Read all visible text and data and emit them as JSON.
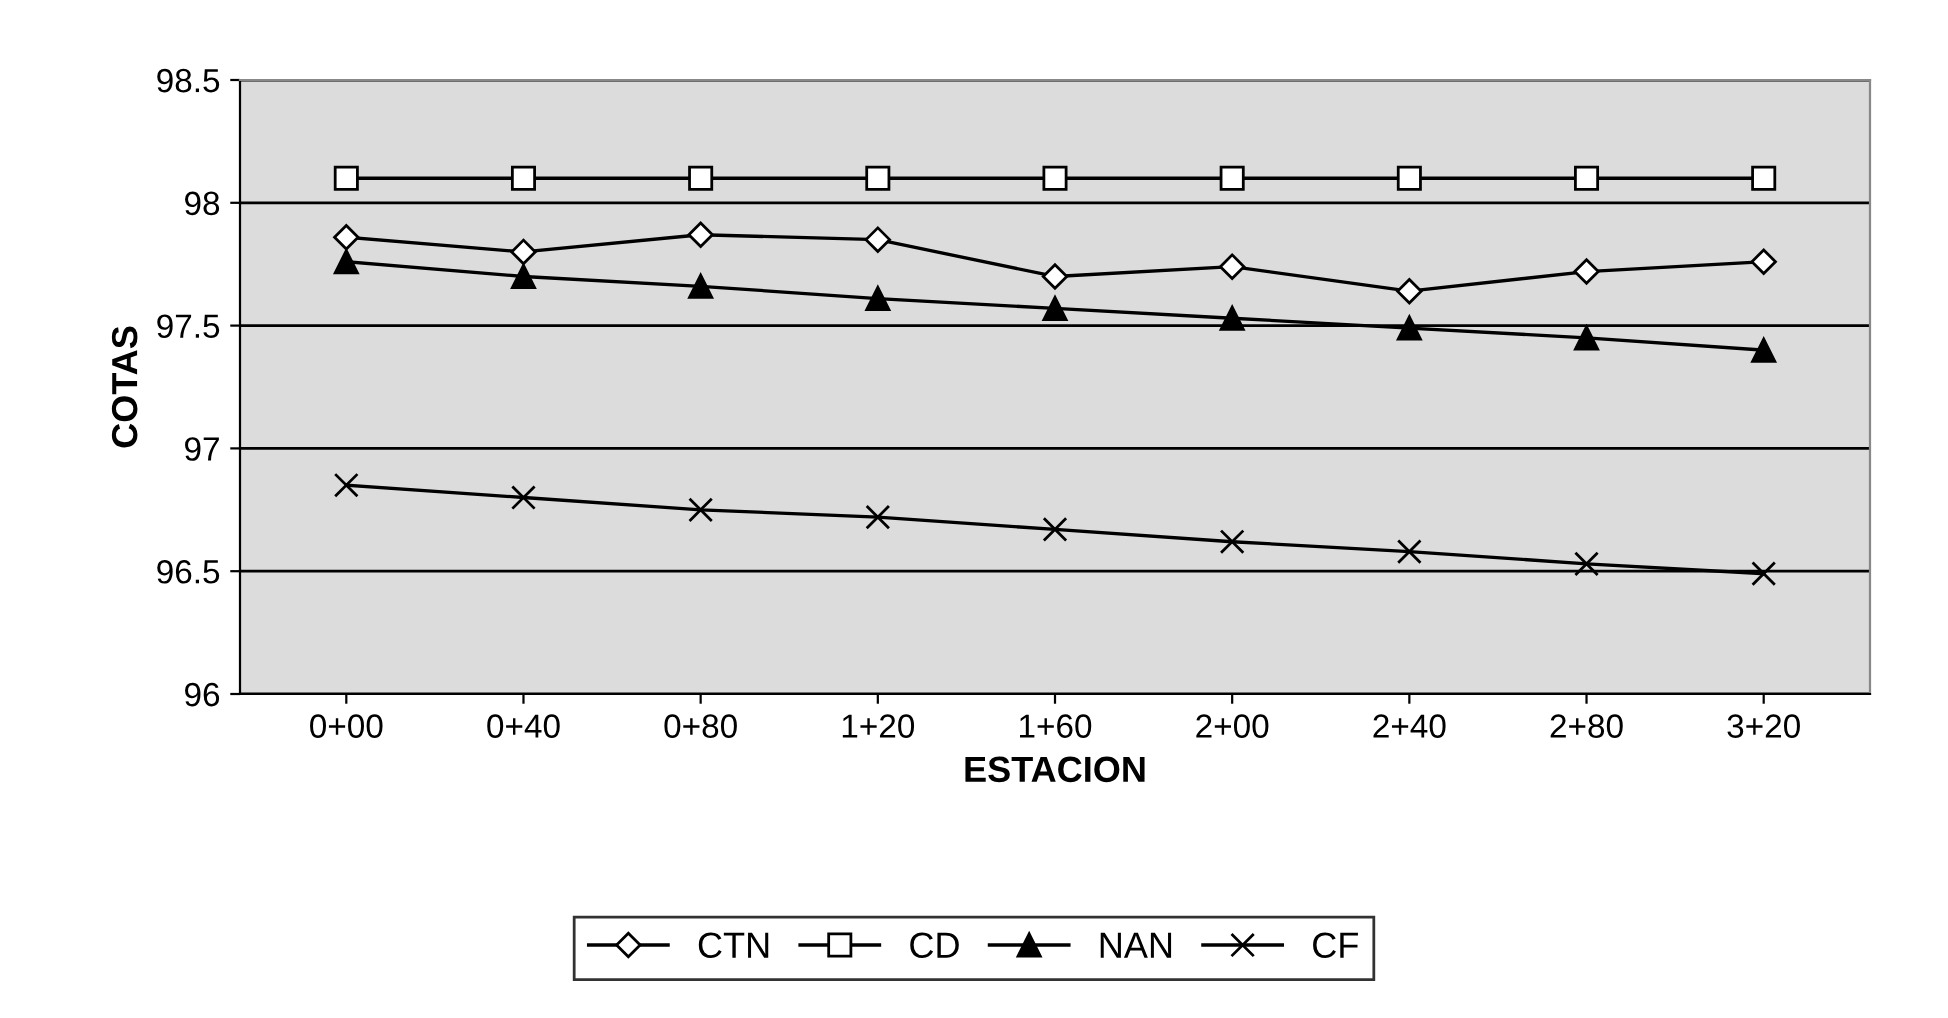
{
  "chart_data": {
    "type": "line",
    "xlabel": "ESTACION",
    "ylabel": "COTAS",
    "categories": [
      "0+00",
      "0+40",
      "0+80",
      "1+20",
      "1+60",
      "2+00",
      "2+40",
      "2+80",
      "3+20"
    ],
    "series": [
      {
        "name": "CTN",
        "color": "#000000",
        "marker": "diamond",
        "values": [
          97.86,
          97.8,
          97.87,
          97.85,
          97.7,
          97.74,
          97.64,
          97.72,
          97.76
        ]
      },
      {
        "name": "CD",
        "color": "#000000",
        "marker": "square",
        "values": [
          98.1,
          98.1,
          98.1,
          98.1,
          98.1,
          98.1,
          98.1,
          98.1,
          98.1
        ]
      },
      {
        "name": "NAN",
        "color": "#000000",
        "marker": "triangle",
        "values": [
          97.76,
          97.7,
          97.66,
          97.61,
          97.57,
          97.53,
          97.49,
          97.45,
          97.4
        ]
      },
      {
        "name": "CF",
        "color": "#000000",
        "marker": "cross",
        "values": [
          96.85,
          96.8,
          96.75,
          96.72,
          96.67,
          96.62,
          96.58,
          96.53,
          96.49
        ]
      }
    ],
    "ylim": [
      96,
      98.5
    ],
    "yticks": [
      96,
      96.5,
      97,
      97.5,
      98,
      98.5
    ],
    "grid": "y",
    "legend": "bottom",
    "line_style": "solid"
  }
}
